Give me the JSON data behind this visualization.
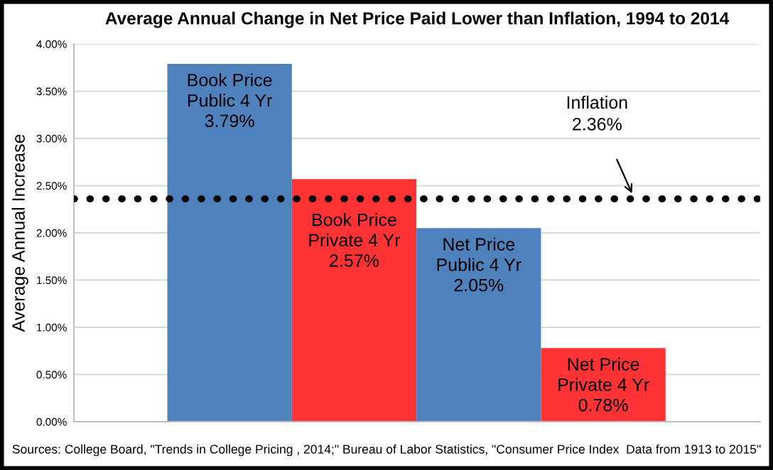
{
  "chart_data": {
    "type": "bar",
    "title": "Average Annual Change in Net Price Paid Lower than Inflation, 1994 to 2014",
    "ylabel": "Average Annual Increase",
    "categories": [
      null,
      null,
      null,
      null
    ],
    "values": [
      3.79,
      2.57,
      2.05,
      0.78
    ],
    "colors": [
      "#4f81bd",
      "#ff3333",
      "#4f81bd",
      "#ff3333"
    ],
    "value_labels": [
      "Book Price\nPublic 4 Yr\n3.79%",
      "Book Price\nPrivate 4 Yr\n2.57%",
      "Net Price\nPublic 4 Yr\n2.05%",
      "Net Price\nPrivate 4 Yr\n0.78%"
    ],
    "ylim": [
      0,
      4
    ],
    "yticks": [
      {
        "value": 0,
        "label": "0.00%"
      },
      {
        "value": 0.5,
        "label": "0.50%"
      },
      {
        "value": 1,
        "label": "1.00%"
      },
      {
        "value": 1.5,
        "label": "1.50%"
      },
      {
        "value": 2,
        "label": "2.00%"
      },
      {
        "value": 2.5,
        "label": "2.50%"
      },
      {
        "value": 3,
        "label": "3.00%"
      },
      {
        "value": 3.5,
        "label": "3.50%"
      },
      {
        "value": 4,
        "label": "4.00%"
      }
    ],
    "ref_lines": [
      {
        "axis": "y",
        "value": 2.36,
        "label": "Inflation\n2.36%",
        "color": "#000000",
        "line_style": "dotted"
      }
    ],
    "grid": "y",
    "annotations": [
      "Sources: College Board, \"Trends in College Pricing , 2014;\" Bureau of Labor Statistics, \"Consumer Price Index  Data from 1913 to 2015\""
    ]
  }
}
